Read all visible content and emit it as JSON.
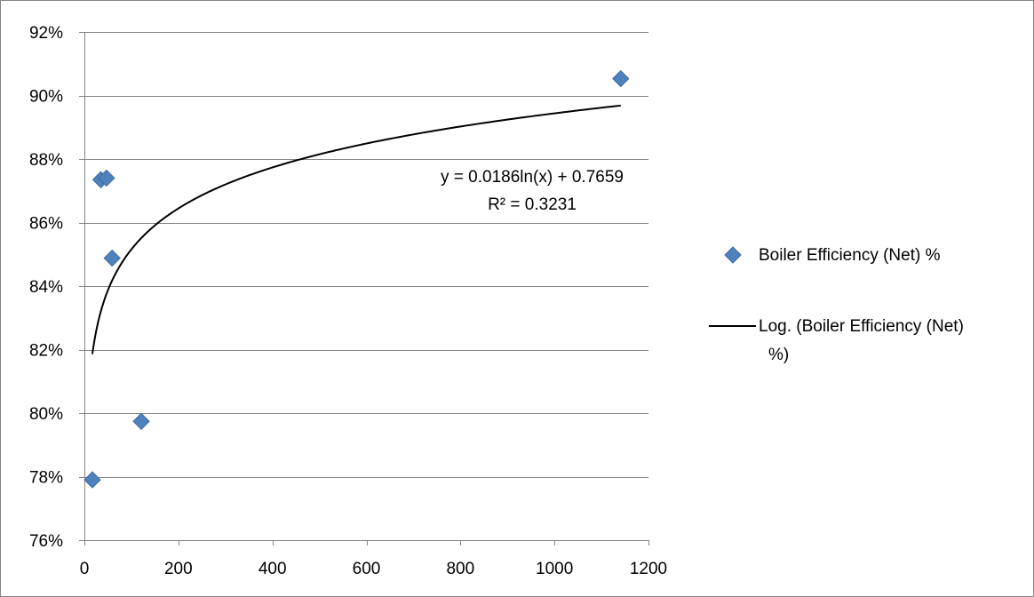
{
  "chart_data": {
    "type": "scatter",
    "title": "",
    "xlabel": "",
    "ylabel": "",
    "xlim": [
      0,
      1200
    ],
    "ylim": [
      0.76,
      0.92
    ],
    "x_ticks": [
      0,
      200,
      400,
      600,
      800,
      1000,
      1200
    ],
    "y_ticks": [
      0.76,
      0.78,
      0.8,
      0.82,
      0.84,
      0.86,
      0.88,
      0.9,
      0.92
    ],
    "x_tick_labels": [
      "0",
      "200",
      "400",
      "600",
      "800",
      "1000",
      "1200"
    ],
    "y_tick_labels": [
      "76%",
      "78%",
      "80%",
      "82%",
      "84%",
      "86%",
      "88%",
      "90%",
      "92%"
    ],
    "grid": "horizontal major gridlines",
    "legend_position": "right",
    "series": [
      {
        "name": "Boiler Efficiency (Net) %",
        "marker": "diamond",
        "color": "#4F81BD",
        "points": [
          {
            "x": 17,
            "y": 0.779
          },
          {
            "x": 35,
            "y": 0.8735
          },
          {
            "x": 47,
            "y": 0.874
          },
          {
            "x": 59,
            "y": 0.8488
          },
          {
            "x": 121,
            "y": 0.7974
          },
          {
            "x": 1141,
            "y": 0.9053
          }
        ]
      }
    ],
    "trendline": {
      "name": "Log. (Boiler Efficiency (Net) %)",
      "legend_lines": [
        "Log. (Boiler Efficiency (Net)",
        "%)"
      ],
      "type": "logarithmic",
      "color": "#000000",
      "a": 0.0186,
      "b": 0.7659,
      "x_range": [
        17,
        1141
      ],
      "equation": "y = 0.0186ln(x) + 0.7659",
      "r_squared": "R² = 0.3231"
    }
  }
}
